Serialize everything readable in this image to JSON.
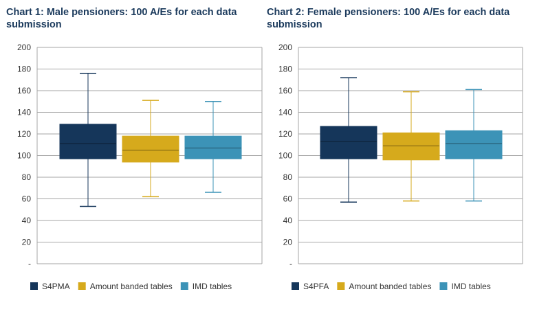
{
  "colors": {
    "navy": "#15365a",
    "gold": "#d6aa1c",
    "teal": "#3c93b7",
    "grid": "#a6a6a6",
    "title": "#1b3a5c"
  },
  "chart_data": [
    {
      "type": "box",
      "title": "Chart 1: Male pensioners: 100 A/Es for each data submission",
      "xlabel": "",
      "ylabel": "",
      "ylim": [
        0,
        200
      ],
      "y_ticks": [
        {
          "value": 200,
          "label": "200"
        },
        {
          "value": 180,
          "label": "180"
        },
        {
          "value": 160,
          "label": "160"
        },
        {
          "value": 140,
          "label": "140"
        },
        {
          "value": 120,
          "label": "120"
        },
        {
          "value": 100,
          "label": "100"
        },
        {
          "value": 80,
          "label": "80"
        },
        {
          "value": 60,
          "label": "60"
        },
        {
          "value": 40,
          "label": "40"
        },
        {
          "value": 20,
          "label": "20"
        },
        {
          "value": 0,
          "label": "-"
        }
      ],
      "grid": true,
      "legend_position": "bottom",
      "series": [
        {
          "name": "S4PMA",
          "color": "#15365a",
          "min": 53,
          "q1": 97,
          "median": 111,
          "q3": 129,
          "max": 176
        },
        {
          "name": "Amount banded tables",
          "color": "#d6aa1c",
          "min": 62,
          "q1": 94,
          "median": 105,
          "q3": 118,
          "max": 151
        },
        {
          "name": "IMD tables",
          "color": "#3c93b7",
          "min": 66,
          "q1": 97,
          "median": 107,
          "q3": 118,
          "max": 150
        }
      ]
    },
    {
      "type": "box",
      "title": "Chart 2: Female pensioners: 100 A/Es for each data submission",
      "xlabel": "",
      "ylabel": "",
      "ylim": [
        0,
        200
      ],
      "y_ticks": [
        {
          "value": 200,
          "label": "200"
        },
        {
          "value": 180,
          "label": "180"
        },
        {
          "value": 160,
          "label": "160"
        },
        {
          "value": 140,
          "label": "140"
        },
        {
          "value": 120,
          "label": "120"
        },
        {
          "value": 100,
          "label": "100"
        },
        {
          "value": 80,
          "label": "80"
        },
        {
          "value": 60,
          "label": "60"
        },
        {
          "value": 40,
          "label": "40"
        },
        {
          "value": 20,
          "label": "20"
        },
        {
          "value": 0,
          "label": "-"
        }
      ],
      "grid": true,
      "legend_position": "bottom",
      "series": [
        {
          "name": "S4PFA",
          "color": "#15365a",
          "min": 57,
          "q1": 97,
          "median": 113,
          "q3": 127,
          "max": 172
        },
        {
          "name": "Amount banded tables",
          "color": "#d6aa1c",
          "min": 58,
          "q1": 96,
          "median": 109,
          "q3": 121,
          "max": 159
        },
        {
          "name": "IMD tables",
          "color": "#3c93b7",
          "min": 58,
          "q1": 97,
          "median": 111,
          "q3": 123,
          "max": 161
        }
      ]
    }
  ]
}
